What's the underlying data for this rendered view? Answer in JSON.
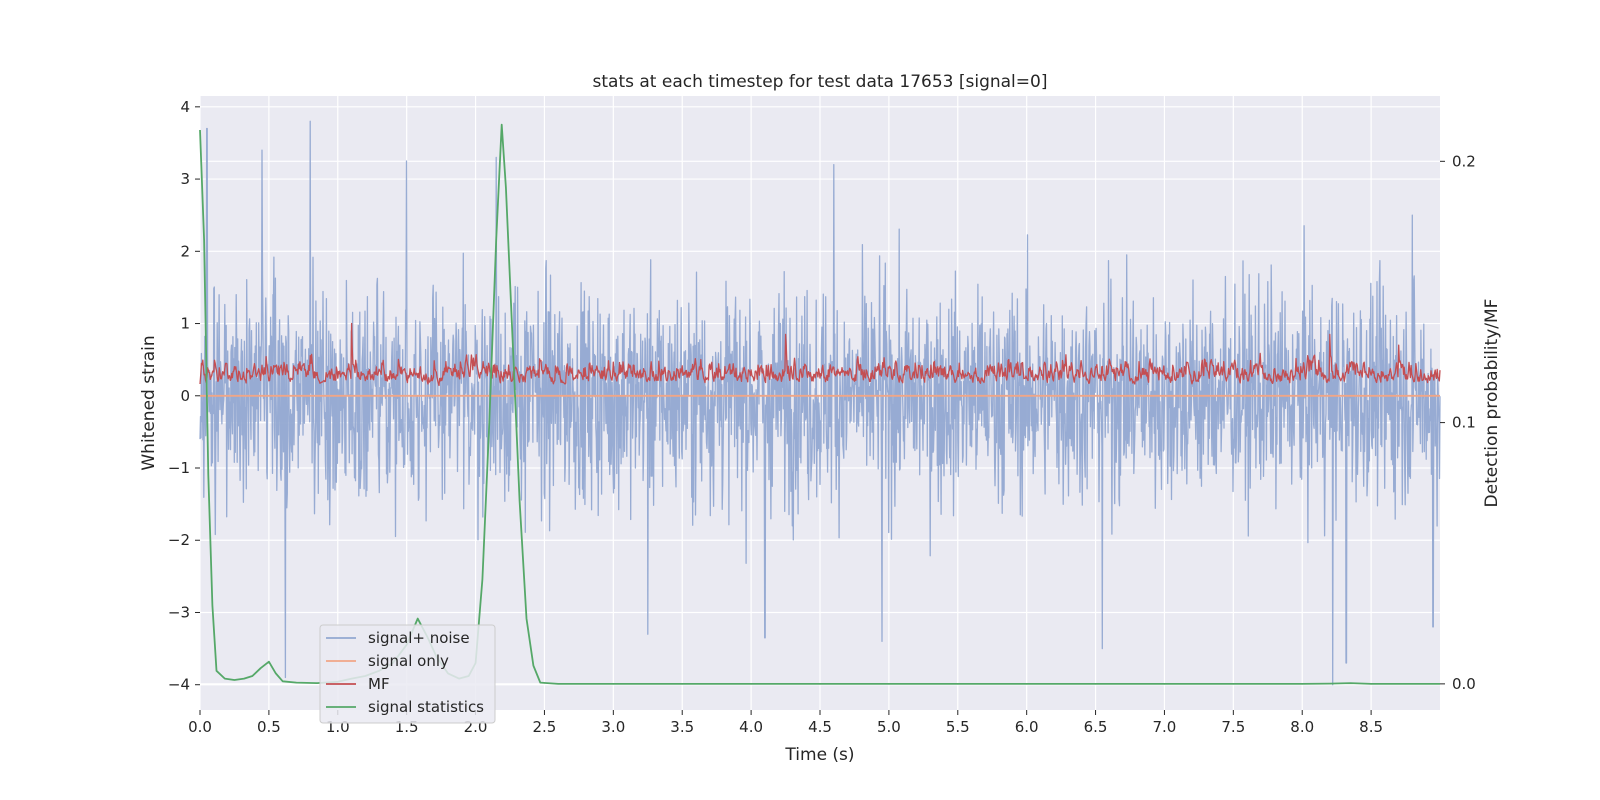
{
  "chart_data": {
    "type": "line",
    "title": "stats at each timestep for test data 17653 [signal=0]",
    "xlabel": "Time (s)",
    "ylabel": "Whitened strain",
    "y2label": "Detection probability/MF",
    "xlim": [
      0.0,
      9.0
    ],
    "ylim": [
      -4.35,
      4.15
    ],
    "y2lim": [
      -0.01,
      0.225
    ],
    "xticks": [
      0.0,
      0.5,
      1.0,
      1.5,
      2.0,
      2.5,
      3.0,
      3.5,
      4.0,
      4.5,
      5.0,
      5.5,
      6.0,
      6.5,
      7.0,
      7.5,
      8.0,
      8.5
    ],
    "xtick_labels": [
      "0.0",
      "0.5",
      "1.0",
      "1.5",
      "2.0",
      "2.5",
      "3.0",
      "3.5",
      "4.0",
      "4.5",
      "5.0",
      "5.5",
      "6.0",
      "6.5",
      "7.0",
      "7.5",
      "8.0",
      "8.5"
    ],
    "yticks": [
      4,
      3,
      2,
      1,
      0,
      -1,
      -2,
      -3,
      -4
    ],
    "ytick_labels": [
      "4",
      "3",
      "2",
      "1",
      "0",
      "−1",
      "−2",
      "−3",
      "−4"
    ],
    "y2ticks": [
      0.2,
      0.1,
      0.0
    ],
    "y2tick_labels": [
      "0.2",
      "0.1",
      "0.0"
    ],
    "grid": true,
    "legend_position": "lower-left",
    "series": [
      {
        "name": "signal+ noise",
        "axis": "left",
        "color": "#92a8d1",
        "style": "noise",
        "amplitude_sd": 0.9,
        "peaks": [
          [
            0.05,
            3.7
          ],
          [
            0.45,
            3.4
          ],
          [
            0.8,
            3.8
          ],
          [
            1.5,
            3.25
          ],
          [
            2.15,
            3.3
          ],
          [
            4.6,
            3.2
          ],
          [
            8.8,
            2.5
          ],
          [
            0.62,
            -3.9
          ],
          [
            3.25,
            -3.3
          ],
          [
            4.1,
            -3.35
          ],
          [
            4.95,
            -3.4
          ],
          [
            6.55,
            -3.5
          ],
          [
            8.22,
            -4.0
          ],
          [
            8.32,
            -3.7
          ],
          [
            8.95,
            -3.2
          ]
        ]
      },
      {
        "name": "signal only",
        "axis": "left",
        "color": "#f0a687",
        "style": "line",
        "points": [
          [
            0.0,
            0.0
          ],
          [
            9.0,
            0.0
          ]
        ]
      },
      {
        "name": "MF",
        "axis": "left",
        "color": "#c44e52",
        "style": "mf",
        "baseline": 0.2,
        "peaks": [
          [
            1.1,
            1.0
          ],
          [
            4.25,
            0.85
          ],
          [
            8.2,
            0.85
          ],
          [
            8.7,
            0.7
          ]
        ]
      },
      {
        "name": "signal statistics",
        "axis": "right",
        "color": "#55a868",
        "style": "line",
        "points": [
          [
            0.0,
            0.212
          ],
          [
            0.03,
            0.17
          ],
          [
            0.06,
            0.08
          ],
          [
            0.09,
            0.03
          ],
          [
            0.12,
            0.005
          ],
          [
            0.18,
            0.002
          ],
          [
            0.25,
            0.0015
          ],
          [
            0.32,
            0.002
          ],
          [
            0.38,
            0.003
          ],
          [
            0.44,
            0.006
          ],
          [
            0.5,
            0.0085
          ],
          [
            0.55,
            0.004
          ],
          [
            0.6,
            0.001
          ],
          [
            0.7,
            0.0005
          ],
          [
            0.85,
            0.0003
          ],
          [
            1.0,
            0.0008
          ],
          [
            1.1,
            0.002
          ],
          [
            1.2,
            0.003
          ],
          [
            1.3,
            0.005
          ],
          [
            1.4,
            0.008
          ],
          [
            1.5,
            0.015
          ],
          [
            1.58,
            0.025
          ],
          [
            1.65,
            0.018
          ],
          [
            1.72,
            0.01
          ],
          [
            1.8,
            0.004
          ],
          [
            1.88,
            0.002
          ],
          [
            1.95,
            0.003
          ],
          [
            2.0,
            0.008
          ],
          [
            2.05,
            0.04
          ],
          [
            2.1,
            0.1
          ],
          [
            2.15,
            0.17
          ],
          [
            2.19,
            0.214
          ],
          [
            2.22,
            0.19
          ],
          [
            2.27,
            0.13
          ],
          [
            2.32,
            0.07
          ],
          [
            2.37,
            0.025
          ],
          [
            2.42,
            0.007
          ],
          [
            2.47,
            0.0005
          ],
          [
            2.6,
            0.0
          ],
          [
            4.0,
            0.0
          ],
          [
            6.0,
            0.0
          ],
          [
            8.0,
            0.0
          ],
          [
            8.2,
            0.0001
          ],
          [
            8.35,
            0.0003
          ],
          [
            8.5,
            0.0
          ],
          [
            9.0,
            0.0
          ]
        ]
      }
    ]
  }
}
